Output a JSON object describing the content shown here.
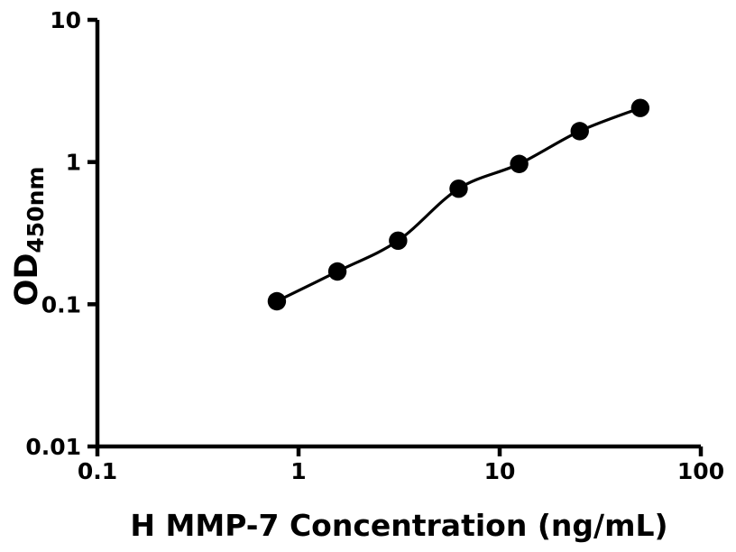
{
  "figure": {
    "background_color": "#ffffff",
    "ink_color": "#000000"
  },
  "chart_data": {
    "type": "scatter",
    "title": "",
    "xlabel": "H MMP-7 Concentration (ng/mL)",
    "ylabel_main": "OD",
    "ylabel_sub": "450nm",
    "xscale": "log",
    "yscale": "log",
    "xlim": [
      0.1,
      100
    ],
    "ylim": [
      0.01,
      10
    ],
    "grid": false,
    "legend": "none",
    "x_ticks": [
      {
        "value": 0.1,
        "label": "0.1"
      },
      {
        "value": 1,
        "label": "1"
      },
      {
        "value": 10,
        "label": "10"
      },
      {
        "value": 100,
        "label": "100"
      }
    ],
    "y_ticks": [
      {
        "value": 0.01,
        "label": "0.01"
      },
      {
        "value": 0.1,
        "label": "0.1"
      },
      {
        "value": 1,
        "label": "1"
      },
      {
        "value": 10,
        "label": "10"
      }
    ],
    "series": [
      {
        "name": "standard-curve",
        "marker": "filled-circle",
        "marker_color": "#000000",
        "line": "smooth-fit",
        "line_color": "#000000",
        "x": [
          0.78,
          1.56,
          3.125,
          6.25,
          12.5,
          25,
          50
        ],
        "y": [
          0.105,
          0.17,
          0.28,
          0.65,
          0.97,
          1.65,
          2.4
        ]
      }
    ]
  }
}
